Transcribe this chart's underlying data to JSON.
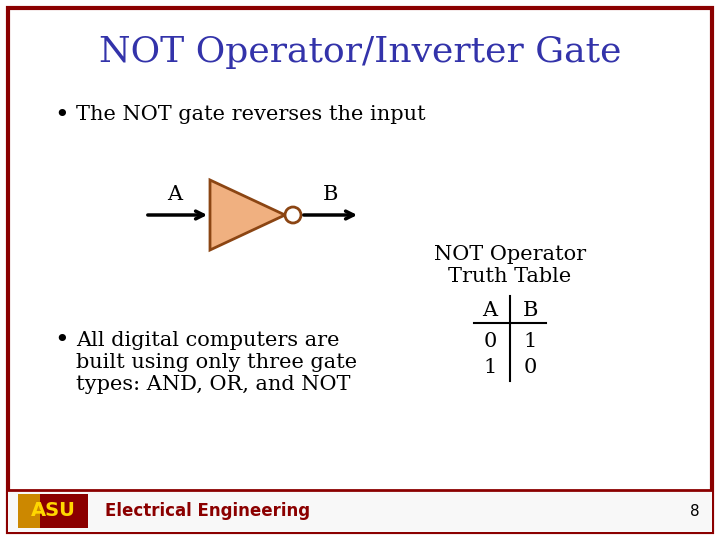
{
  "title": "NOT Operator/Inverter Gate",
  "title_color": "#3333AA",
  "title_fontsize": 26,
  "bullet1": "The NOT gate reverses the input",
  "bullet2_line1": "All digital computers are",
  "bullet2_line2": "built using only three gate",
  "bullet2_line3": "types: AND, OR, and NOT",
  "bullet_fontsize": 15,
  "gate_color": "#F0B080",
  "gate_outline_color": "#8B4513",
  "arrow_color": "#000000",
  "label_A": "A",
  "label_B": "B",
  "truth_table_title1": "NOT Operator",
  "truth_table_title2": "Truth Table",
  "truth_table_headers": [
    "A",
    "B"
  ],
  "truth_table_rows": [
    [
      "0",
      "1"
    ],
    [
      "1",
      "0"
    ]
  ],
  "table_fontsize": 15,
  "border_color": "#8B0000",
  "background_color": "#FFFFFF",
  "footer_text": "Electrical Engineering",
  "footer_color": "#8B0000",
  "page_number": "8"
}
